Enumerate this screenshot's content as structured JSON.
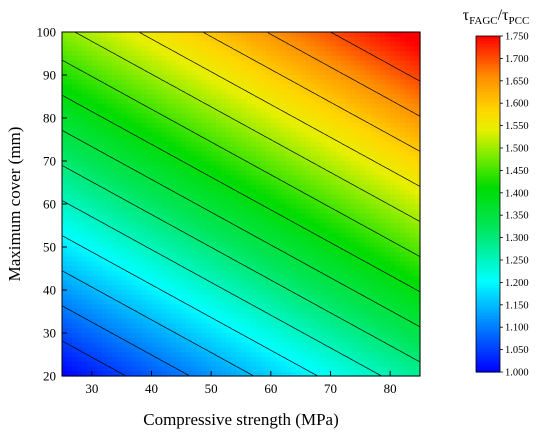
{
  "chart_data": {
    "type": "heatmap",
    "title": "",
    "xlabel": "Compressive strength (MPa)",
    "ylabel": "Maximum cover (mm)",
    "xlim": [
      25,
      85
    ],
    "ylim": [
      20,
      100
    ],
    "xticks": [
      30,
      40,
      50,
      60,
      70,
      80
    ],
    "yticks": [
      20,
      30,
      40,
      50,
      60,
      70,
      80,
      90,
      100
    ],
    "colorbar": {
      "label": {
        "main": "τ",
        "sub1": "FAGC",
        "slash": "/",
        "main2": "τ",
        "sub2": "PCC"
      },
      "range": [
        1.0,
        1.75
      ],
      "ticks": [
        "1.000",
        "1.050",
        "1.100",
        "1.150",
        "1.200",
        "1.250",
        "1.300",
        "1.350",
        "1.400",
        "1.450",
        "1.500",
        "1.550",
        "1.600",
        "1.650",
        "1.700",
        "1.750"
      ]
    },
    "contour_levels": [
      1.05,
      1.1,
      1.15,
      1.2,
      1.25,
      1.3,
      1.35,
      1.4,
      1.45,
      1.5,
      1.55,
      1.6,
      1.65,
      1.7
    ],
    "grid_estimate": {
      "x": [
        25,
        85
      ],
      "y": [
        20,
        100
      ],
      "z": [
        [
          1.0,
          1.28
        ],
        [
          1.49,
          1.77
        ]
      ]
    }
  }
}
